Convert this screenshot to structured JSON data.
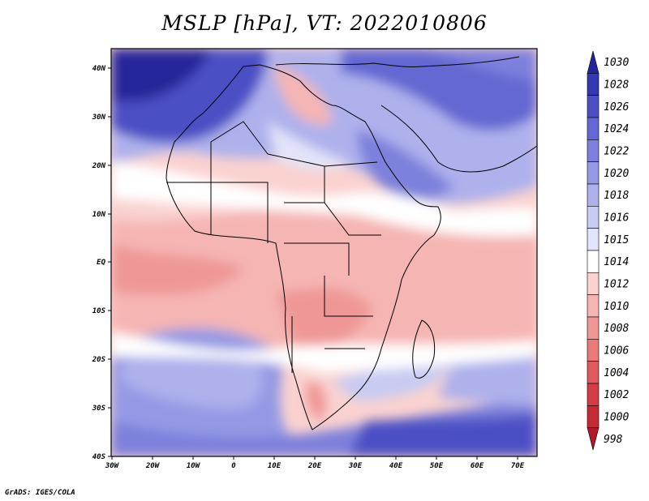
{
  "title": "MSLP [hPa], VT: 2022010806",
  "credit": "GrADS: IGES/COLA",
  "lat_labels": [
    "40N",
    "30N",
    "20N",
    "10N",
    "EQ",
    "10S",
    "20S",
    "30S",
    "40S"
  ],
  "lon_labels": [
    "30W",
    "20W",
    "10W",
    "0",
    "10E",
    "20E",
    "30E",
    "40E",
    "50E",
    "60E",
    "70E"
  ],
  "colorbar": {
    "levels": [
      "998",
      "1000",
      "1002",
      "1004",
      "1006",
      "1008",
      "1010",
      "1012",
      "1014",
      "1015",
      "1016",
      "1018",
      "1020",
      "1022",
      "1024",
      "1026",
      "1028",
      "1030"
    ],
    "colors": [
      "#b2182b",
      "#c52b35",
      "#d43d45",
      "#e05a5d",
      "#e87a79",
      "#ef9796",
      "#f5b5b3",
      "#fad2d0",
      "#ffffff",
      "#e2e4fa",
      "#c8cbf2",
      "#aeb1ec",
      "#9599e4",
      "#7d80dc",
      "#6468d2",
      "#4c4fc4",
      "#3438b2",
      "#25259a"
    ]
  },
  "map_colors": {
    "land_outline": "#000000",
    "high_pressure": "#3438b2",
    "low_pressure": "#f5b5b3"
  }
}
